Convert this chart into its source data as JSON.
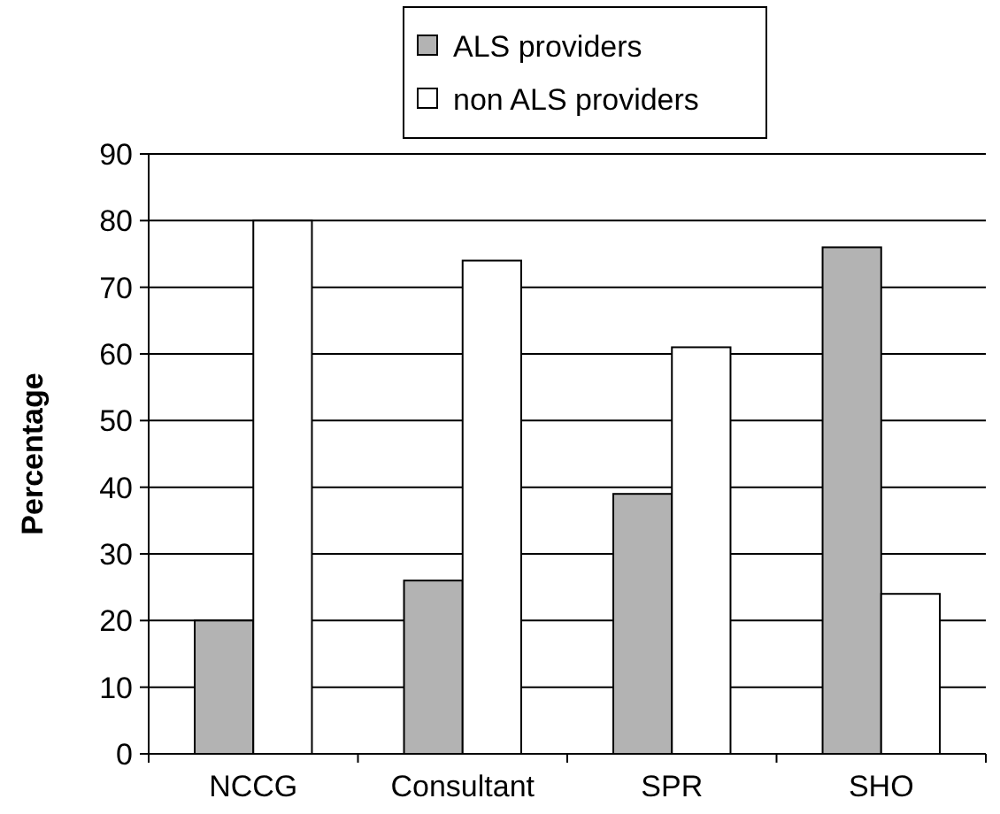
{
  "chart_data": {
    "type": "bar",
    "ylabel": "Percentage",
    "categories": [
      "NCCG",
      "Consultant",
      "SPR",
      "SHO"
    ],
    "series": [
      {
        "name": "ALS providers",
        "color": "#b3b3b3",
        "values": [
          20,
          26,
          39,
          76
        ]
      },
      {
        "name": "non ALS providers",
        "color": "#ffffff",
        "values": [
          80,
          74,
          61,
          24
        ]
      }
    ],
    "ylim": [
      0,
      90
    ],
    "yticks": [
      0,
      10,
      20,
      30,
      40,
      50,
      60,
      70,
      80,
      90
    ],
    "grid": "y",
    "legend": "top"
  }
}
